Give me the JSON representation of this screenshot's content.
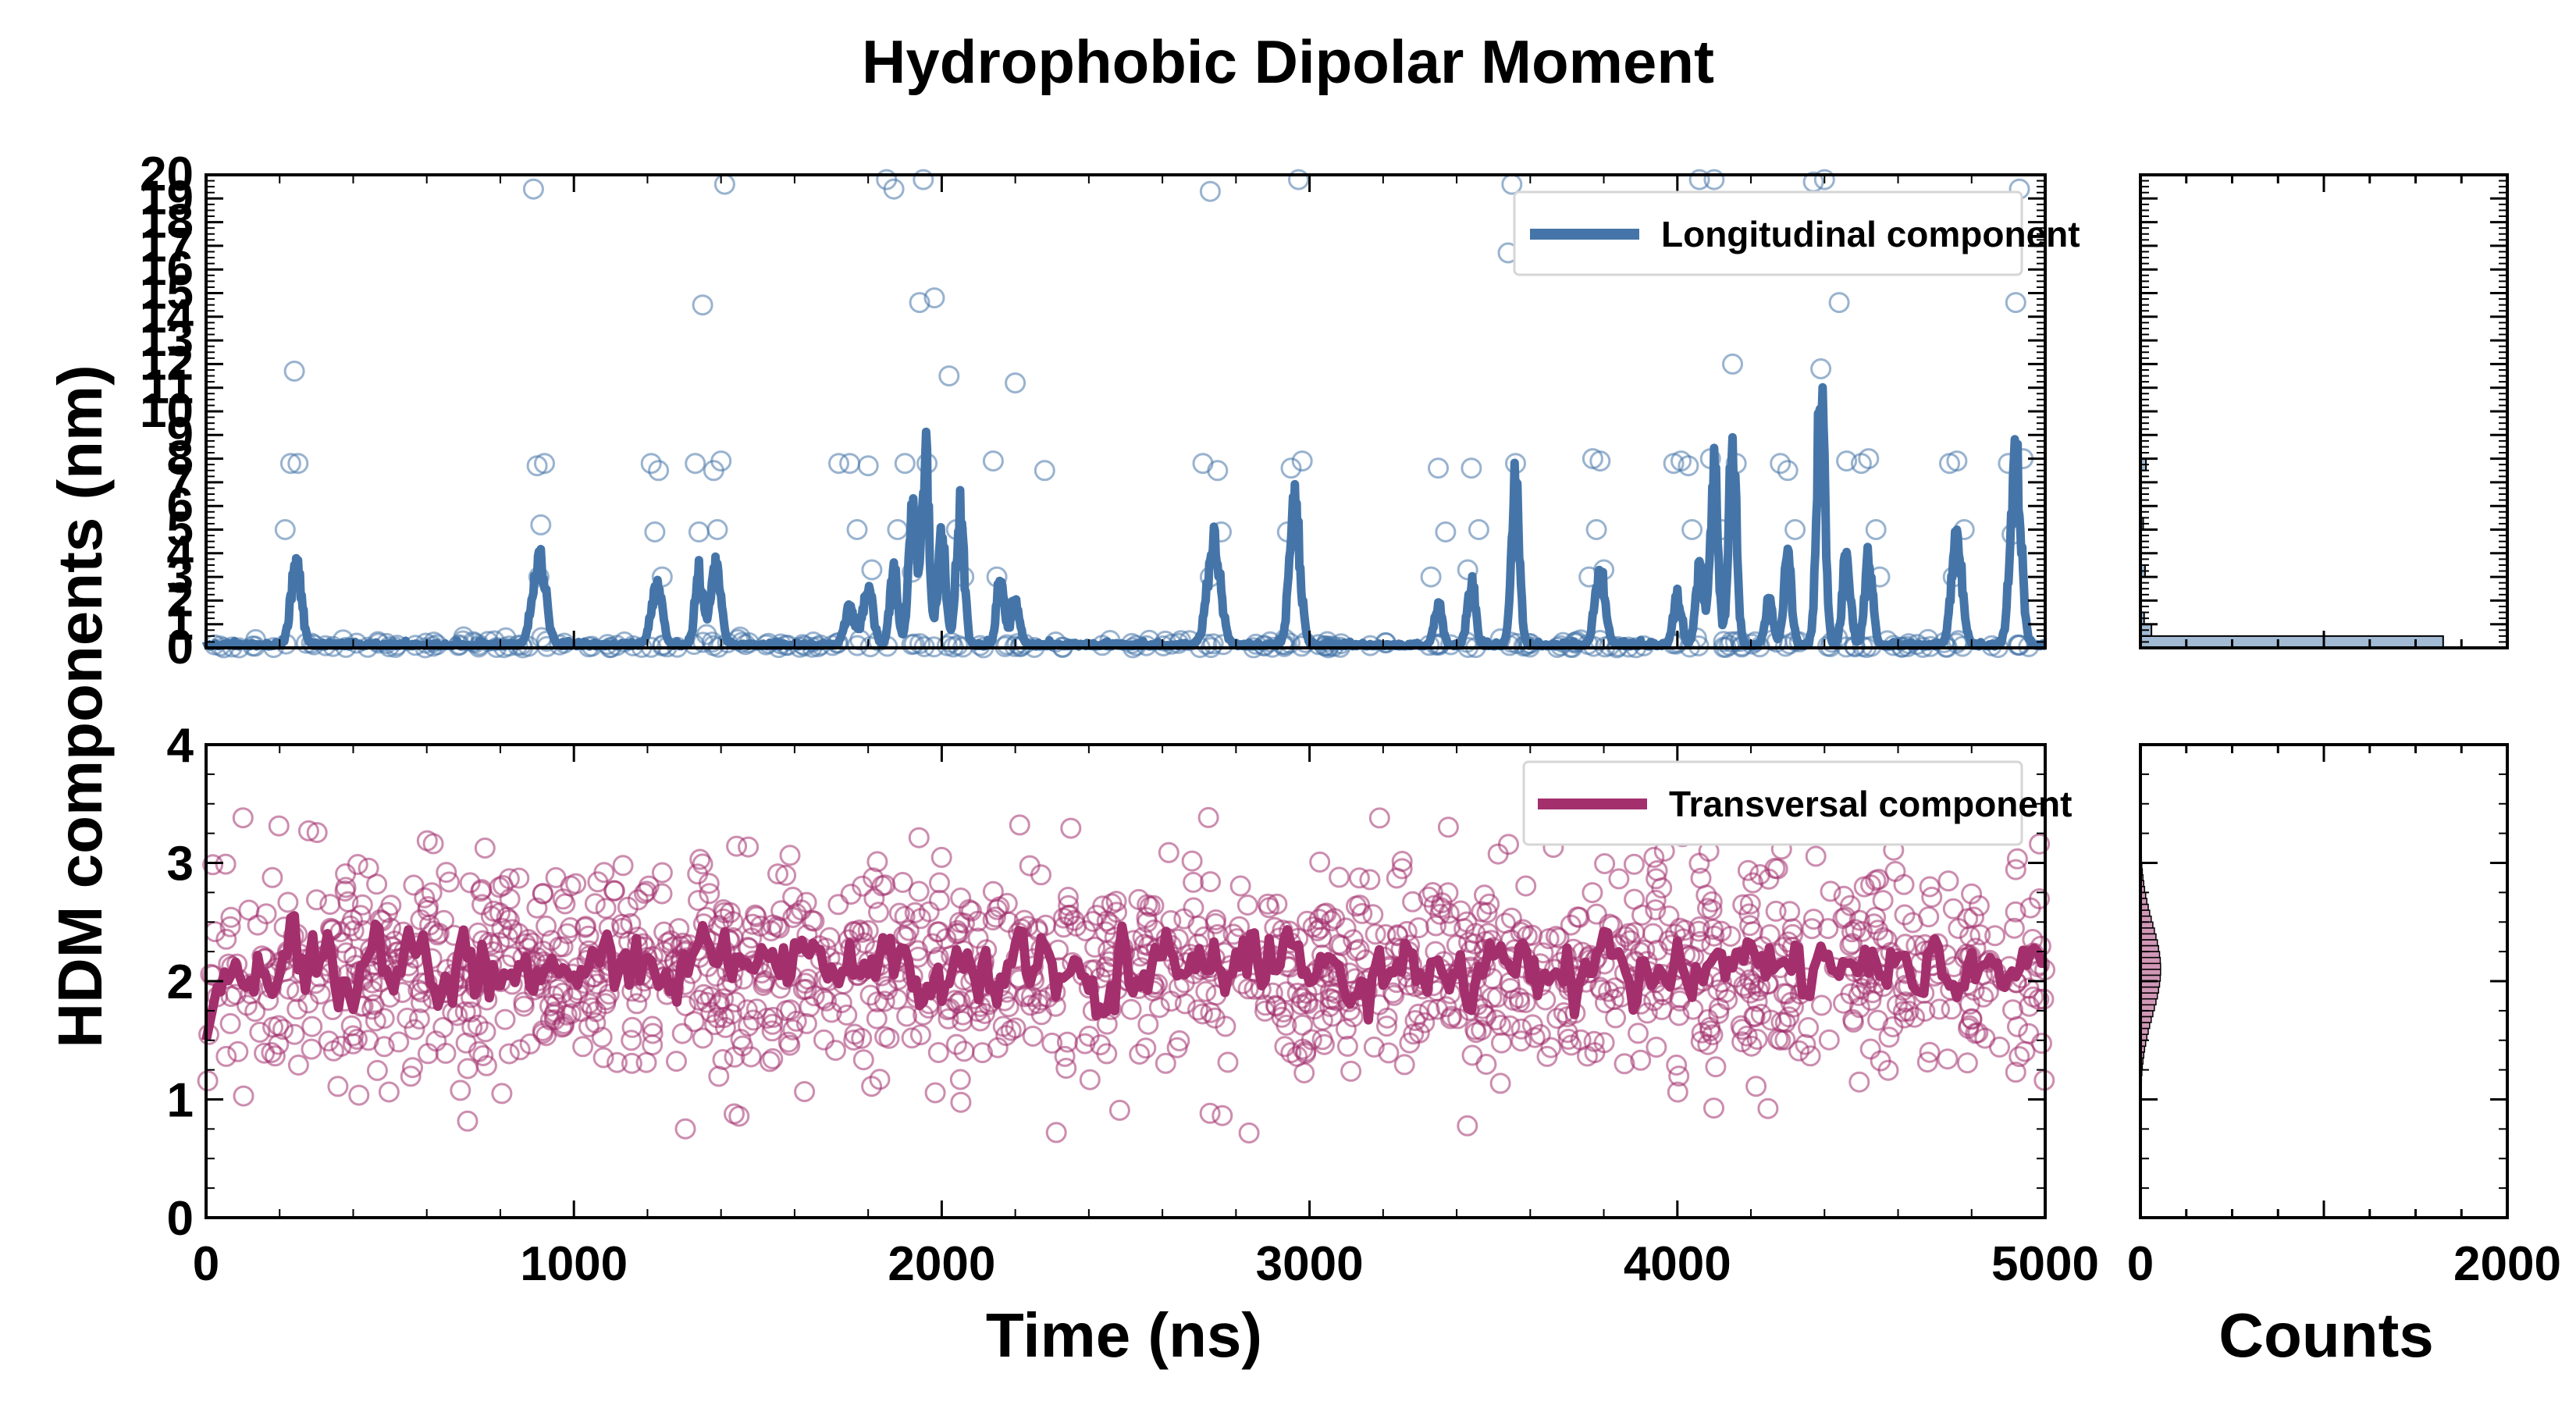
{
  "chart_data": {
    "title": "Hydrophobic Dipolar Moment",
    "ylabel": "HDM components (nm)",
    "xlabel": "Time (ns)",
    "hist_xlabel": "Counts",
    "colors": {
      "longitudinal": "#4575a8",
      "transversal": "#a3306d"
    },
    "panels": [
      {
        "id": "longitudinal",
        "type": "scatter+line",
        "legend": "Longitudinal component",
        "legend_loc": "top-right",
        "xlim": [
          0,
          5000
        ],
        "ylim": [
          0,
          20
        ],
        "ytick_labels": [
          "0",
          "1",
          "2",
          "3",
          "4",
          "5",
          "6",
          "7",
          "8",
          "9",
          "10",
          "11",
          "12",
          "13",
          "14",
          "15",
          "16",
          "17",
          "18",
          "19",
          "20"
        ],
        "xtick_labels": [],
        "peaks": [
          {
            "t": 245,
            "h": 3.3,
            "w": 20
          },
          {
            "t": 905,
            "h": 3.6,
            "w": 25
          },
          {
            "t": 1225,
            "h": 2.6,
            "w": 20
          },
          {
            "t": 1340,
            "h": 3.1,
            "w": 15
          },
          {
            "t": 1385,
            "h": 3.3,
            "w": 20
          },
          {
            "t": 1750,
            "h": 1.5,
            "w": 20
          },
          {
            "t": 1800,
            "h": 2.2,
            "w": 20
          },
          {
            "t": 1870,
            "h": 3.0,
            "w": 15
          },
          {
            "t": 1920,
            "h": 5.5,
            "w": 15
          },
          {
            "t": 1955,
            "h": 8.0,
            "w": 15
          },
          {
            "t": 2000,
            "h": 4.5,
            "w": 15
          },
          {
            "t": 2050,
            "h": 5.8,
            "w": 15
          },
          {
            "t": 2160,
            "h": 2.8,
            "w": 15
          },
          {
            "t": 2200,
            "h": 2.0,
            "w": 15
          },
          {
            "t": 2740,
            "h": 4.2,
            "w": 25
          },
          {
            "t": 2960,
            "h": 5.8,
            "w": 20
          },
          {
            "t": 3350,
            "h": 1.7,
            "w": 15
          },
          {
            "t": 3440,
            "h": 2.8,
            "w": 15
          },
          {
            "t": 3560,
            "h": 7.0,
            "w": 15
          },
          {
            "t": 3790,
            "h": 3.0,
            "w": 20
          },
          {
            "t": 4000,
            "h": 2.0,
            "w": 15
          },
          {
            "t": 4060,
            "h": 3.0,
            "w": 15
          },
          {
            "t": 4100,
            "h": 7.2,
            "w": 15
          },
          {
            "t": 4150,
            "h": 8.5,
            "w": 15
          },
          {
            "t": 4250,
            "h": 1.8,
            "w": 15
          },
          {
            "t": 4300,
            "h": 3.5,
            "w": 15
          },
          {
            "t": 4390,
            "h": 11.0,
            "w": 15
          },
          {
            "t": 4460,
            "h": 3.8,
            "w": 15
          },
          {
            "t": 4520,
            "h": 3.7,
            "w": 15
          },
          {
            "t": 4760,
            "h": 4.3,
            "w": 20
          },
          {
            "t": 4920,
            "h": 7.7,
            "w": 20
          }
        ],
        "outliers": [
          {
            "t": 240,
            "v": 11.7
          },
          {
            "t": 230,
            "v": 7.8
          },
          {
            "t": 250,
            "v": 7.8
          },
          {
            "t": 215,
            "v": 5.0
          },
          {
            "t": 890,
            "v": 19.4
          },
          {
            "t": 900,
            "v": 7.7
          },
          {
            "t": 910,
            "v": 5.2
          },
          {
            "t": 920,
            "v": 7.8
          },
          {
            "t": 905,
            "v": 3.0
          },
          {
            "t": 1210,
            "v": 7.8
          },
          {
            "t": 1230,
            "v": 7.5
          },
          {
            "t": 1240,
            "v": 3.0
          },
          {
            "t": 1220,
            "v": 4.9
          },
          {
            "t": 1330,
            "v": 7.8
          },
          {
            "t": 1350,
            "v": 14.5
          },
          {
            "t": 1380,
            "v": 7.5
          },
          {
            "t": 1400,
            "v": 7.9
          },
          {
            "t": 1410,
            "v": 19.6
          },
          {
            "t": 1390,
            "v": 5.0
          },
          {
            "t": 1340,
            "v": 4.9
          },
          {
            "t": 1720,
            "v": 7.8
          },
          {
            "t": 1750,
            "v": 7.8
          },
          {
            "t": 1770,
            "v": 5.0
          },
          {
            "t": 1800,
            "v": 7.7
          },
          {
            "t": 1810,
            "v": 3.3
          },
          {
            "t": 1850,
            "v": 19.8
          },
          {
            "t": 1870,
            "v": 19.4
          },
          {
            "t": 1880,
            "v": 5.0
          },
          {
            "t": 1900,
            "v": 7.8
          },
          {
            "t": 1920,
            "v": 3.2
          },
          {
            "t": 1940,
            "v": 14.6
          },
          {
            "t": 1950,
            "v": 19.8
          },
          {
            "t": 1960,
            "v": 7.8
          },
          {
            "t": 1980,
            "v": 14.8
          },
          {
            "t": 2020,
            "v": 11.5
          },
          {
            "t": 2040,
            "v": 5.0
          },
          {
            "t": 2060,
            "v": 3.0
          },
          {
            "t": 2140,
            "v": 7.9
          },
          {
            "t": 2150,
            "v": 3.0
          },
          {
            "t": 2200,
            "v": 11.2
          },
          {
            "t": 2280,
            "v": 7.5
          },
          {
            "t": 2710,
            "v": 7.8
          },
          {
            "t": 2730,
            "v": 19.3
          },
          {
            "t": 2750,
            "v": 7.5
          },
          {
            "t": 2760,
            "v": 4.9
          },
          {
            "t": 2730,
            "v": 3.0
          },
          {
            "t": 2950,
            "v": 7.6
          },
          {
            "t": 2970,
            "v": 19.8
          },
          {
            "t": 2980,
            "v": 7.9
          },
          {
            "t": 2940,
            "v": 4.9
          },
          {
            "t": 3330,
            "v": 3.0
          },
          {
            "t": 3350,
            "v": 7.6
          },
          {
            "t": 3370,
            "v": 4.9
          },
          {
            "t": 3440,
            "v": 7.6
          },
          {
            "t": 3460,
            "v": 5.0
          },
          {
            "t": 3430,
            "v": 3.3
          },
          {
            "t": 3540,
            "v": 16.7
          },
          {
            "t": 3550,
            "v": 19.6
          },
          {
            "t": 3560,
            "v": 7.8
          },
          {
            "t": 3770,
            "v": 8.0
          },
          {
            "t": 3790,
            "v": 7.9
          },
          {
            "t": 3780,
            "v": 5.0
          },
          {
            "t": 3800,
            "v": 3.3
          },
          {
            "t": 3760,
            "v": 3.0
          },
          {
            "t": 3990,
            "v": 7.8
          },
          {
            "t": 4010,
            "v": 7.9
          },
          {
            "t": 4030,
            "v": 7.7
          },
          {
            "t": 4040,
            "v": 5.0
          },
          {
            "t": 4060,
            "v": 19.8
          },
          {
            "t": 4090,
            "v": 8.0
          },
          {
            "t": 4100,
            "v": 19.8
          },
          {
            "t": 4120,
            "v": 5.0
          },
          {
            "t": 4150,
            "v": 12.0
          },
          {
            "t": 4160,
            "v": 7.8
          },
          {
            "t": 4280,
            "v": 7.8
          },
          {
            "t": 4300,
            "v": 7.5
          },
          {
            "t": 4320,
            "v": 5.0
          },
          {
            "t": 4370,
            "v": 19.7
          },
          {
            "t": 4390,
            "v": 11.8
          },
          {
            "t": 4400,
            "v": 19.8
          },
          {
            "t": 4440,
            "v": 14.6
          },
          {
            "t": 4460,
            "v": 7.9
          },
          {
            "t": 4500,
            "v": 7.8
          },
          {
            "t": 4520,
            "v": 8.0
          },
          {
            "t": 4540,
            "v": 5.0
          },
          {
            "t": 4550,
            "v": 3.0
          },
          {
            "t": 4740,
            "v": 7.8
          },
          {
            "t": 4760,
            "v": 7.9
          },
          {
            "t": 4780,
            "v": 5.0
          },
          {
            "t": 4750,
            "v": 3.0
          },
          {
            "t": 4900,
            "v": 7.8
          },
          {
            "t": 4920,
            "v": 14.6
          },
          {
            "t": 4940,
            "v": 8.0
          },
          {
            "t": 4930,
            "v": 19.4
          },
          {
            "t": 4910,
            "v": 4.8
          }
        ],
        "hist": {
          "xlim": [
            0,
            2000
          ],
          "bins": [
            {
              "lo": 0,
              "hi": 0.5,
              "count": 1650
            },
            {
              "lo": 0.5,
              "hi": 1.0,
              "count": 60
            },
            {
              "lo": 1.0,
              "hi": 1.5,
              "count": 20
            },
            {
              "lo": 3.0,
              "hi": 3.5,
              "count": 25
            },
            {
              "lo": 5.0,
              "hi": 5.5,
              "count": 15
            },
            {
              "lo": 7.5,
              "hi": 8.0,
              "count": 30
            }
          ]
        }
      },
      {
        "id": "transversal",
        "type": "scatter+line",
        "legend": "Transversal component",
        "legend_loc": "top-right",
        "xlim": [
          0,
          5000
        ],
        "ylim": [
          0,
          4
        ],
        "ytick_labels": [
          "0",
          "1",
          "2",
          "3",
          "4"
        ],
        "xtick_labels": [
          "0",
          "1000",
          "2000",
          "3000",
          "4000",
          "5000"
        ],
        "mean": 2.1,
        "line_sd": 0.2,
        "scatter_sd": 0.45,
        "hist": {
          "xlim": [
            0,
            2000
          ],
          "xtick_labels": [
            "0",
            "2000"
          ],
          "range": [
            1.0,
            3.3
          ],
          "bin_width": 0.05,
          "peak_count": 110,
          "center": 2.1,
          "sd": 0.38
        }
      }
    ]
  }
}
